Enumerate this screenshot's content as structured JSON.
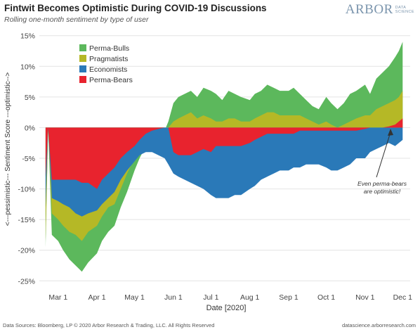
{
  "header": {
    "title": "Fintwit Becomes Optimistic During COVID-19 Discussions",
    "subtitle": "Rolling one-month sentiment by type of user"
  },
  "logo": {
    "word": "ARBOR",
    "sub_line1": "DATA",
    "sub_line2": "SCIENCE"
  },
  "footer": {
    "source": "Data Sources: Bloomberg, LP © 2020 Arbor Research & Trading, LLC. All Rights Reserved",
    "url": "datascience.arborresearch.com"
  },
  "annotation": {
    "line1": "Even perma-bears",
    "line2": "are optimistic!"
  },
  "chart_data": {
    "type": "area",
    "xlabel": "Date [2020]",
    "ylabel": "<---pessimistic--- Sentiment Score ---optimistic-->",
    "xlim": [
      "2020-02-15",
      "2020-12-07"
    ],
    "ylim": [
      -0.26,
      0.16
    ],
    "xticks": [
      {
        "date": "2020-03-01",
        "label": "Mar 1"
      },
      {
        "date": "2020-04-01",
        "label": "Apr 1"
      },
      {
        "date": "2020-05-01",
        "label": "May 1"
      },
      {
        "date": "2020-06-01",
        "label": "Jun 1"
      },
      {
        "date": "2020-07-01",
        "label": "Jul 1"
      },
      {
        "date": "2020-08-01",
        "label": "Aug 1"
      },
      {
        "date": "2020-09-01",
        "label": "Sep 1"
      },
      {
        "date": "2020-10-01",
        "label": "Oct 1"
      },
      {
        "date": "2020-11-01",
        "label": "Nov 1"
      },
      {
        "date": "2020-12-01",
        "label": "Dec 1"
      }
    ],
    "yticks": [
      {
        "value": 0.15,
        "label": "15%"
      },
      {
        "value": 0.1,
        "label": "10%"
      },
      {
        "value": 0.05,
        "label": "5%"
      },
      {
        "value": 0.0,
        "label": "0%"
      },
      {
        "value": -0.05,
        "label": "-5%"
      },
      {
        "value": -0.1,
        "label": "-10%"
      },
      {
        "value": -0.15,
        "label": "-15%"
      },
      {
        "value": -0.2,
        "label": "-20%"
      },
      {
        "value": -0.25,
        "label": "-25%"
      }
    ],
    "grid": "horizontal",
    "legend_position": "top-left",
    "x": [
      "2020-02-20",
      "2020-02-22",
      "2020-02-25",
      "2020-03-01",
      "2020-03-05",
      "2020-03-10",
      "2020-03-15",
      "2020-03-20",
      "2020-03-25",
      "2020-04-01",
      "2020-04-05",
      "2020-04-10",
      "2020-04-15",
      "2020-04-20",
      "2020-04-25",
      "2020-05-01",
      "2020-05-05",
      "2020-05-10",
      "2020-05-15",
      "2020-05-20",
      "2020-05-25",
      "2020-05-28",
      "2020-06-01",
      "2020-06-05",
      "2020-06-10",
      "2020-06-15",
      "2020-06-20",
      "2020-06-25",
      "2020-07-01",
      "2020-07-05",
      "2020-07-10",
      "2020-07-15",
      "2020-07-20",
      "2020-07-25",
      "2020-08-01",
      "2020-08-05",
      "2020-08-10",
      "2020-08-15",
      "2020-08-20",
      "2020-08-25",
      "2020-09-01",
      "2020-09-05",
      "2020-09-10",
      "2020-09-15",
      "2020-09-20",
      "2020-09-25",
      "2020-10-01",
      "2020-10-05",
      "2020-10-10",
      "2020-10-15",
      "2020-10-20",
      "2020-10-25",
      "2020-11-01",
      "2020-11-05",
      "2020-11-10",
      "2020-11-15",
      "2020-11-20",
      "2020-11-25",
      "2020-11-28",
      "2020-12-01"
    ],
    "series": [
      {
        "name": "Perma-Bulls",
        "color": "#5cb85c",
        "values": [
          -0.195,
          0.0,
          -0.175,
          -0.185,
          -0.2,
          -0.215,
          -0.225,
          -0.235,
          -0.22,
          -0.205,
          -0.185,
          -0.17,
          -0.16,
          -0.13,
          -0.105,
          -0.07,
          -0.05,
          -0.03,
          -0.02,
          -0.01,
          -0.005,
          0.01,
          0.04,
          0.05,
          0.055,
          0.06,
          0.05,
          0.065,
          0.06,
          0.055,
          0.045,
          0.06,
          0.055,
          0.05,
          0.045,
          0.055,
          0.06,
          0.07,
          0.065,
          0.06,
          0.06,
          0.065,
          0.055,
          0.045,
          0.035,
          0.03,
          0.05,
          0.04,
          0.03,
          0.04,
          0.055,
          0.06,
          0.07,
          0.055,
          0.08,
          0.09,
          0.1,
          0.115,
          0.125,
          0.14
        ]
      },
      {
        "name": "Pragmatists",
        "color": "#b5b826",
        "values": [
          -0.185,
          0.0,
          -0.14,
          -0.15,
          -0.16,
          -0.17,
          -0.175,
          -0.185,
          -0.17,
          -0.16,
          -0.145,
          -0.13,
          -0.125,
          -0.1,
          -0.075,
          -0.05,
          -0.04,
          -0.03,
          -0.02,
          -0.01,
          -0.005,
          0.0,
          0.01,
          0.015,
          0.02,
          0.025,
          0.015,
          0.02,
          0.015,
          0.01,
          0.01,
          0.015,
          0.015,
          0.01,
          0.01,
          0.015,
          0.02,
          0.025,
          0.025,
          0.02,
          0.02,
          0.02,
          0.02,
          0.015,
          0.01,
          0.005,
          0.01,
          0.005,
          0.0,
          0.005,
          0.01,
          0.015,
          0.02,
          0.02,
          0.03,
          0.035,
          0.04,
          0.045,
          0.05,
          0.06
        ]
      },
      {
        "name": "Economists",
        "color": "#2a79b8",
        "values": [
          -0.13,
          0.0,
          -0.115,
          -0.12,
          -0.125,
          -0.13,
          -0.14,
          -0.145,
          -0.14,
          -0.135,
          -0.125,
          -0.115,
          -0.105,
          -0.085,
          -0.07,
          -0.055,
          -0.045,
          -0.04,
          -0.04,
          -0.045,
          -0.05,
          -0.06,
          -0.075,
          -0.08,
          -0.085,
          -0.09,
          -0.095,
          -0.1,
          -0.11,
          -0.115,
          -0.115,
          -0.115,
          -0.11,
          -0.11,
          -0.1,
          -0.095,
          -0.085,
          -0.08,
          -0.075,
          -0.07,
          -0.07,
          -0.065,
          -0.065,
          -0.06,
          -0.06,
          -0.06,
          -0.065,
          -0.07,
          -0.07,
          -0.065,
          -0.06,
          -0.05,
          -0.05,
          -0.04,
          -0.035,
          -0.03,
          -0.025,
          -0.03,
          -0.025,
          -0.02
        ]
      },
      {
        "name": "Perma-Bears",
        "color": "#e8232e",
        "values": [
          -0.08,
          0.0,
          -0.085,
          -0.085,
          -0.085,
          -0.085,
          -0.085,
          -0.09,
          -0.09,
          -0.1,
          -0.085,
          -0.075,
          -0.065,
          -0.05,
          -0.04,
          -0.03,
          -0.02,
          -0.01,
          -0.005,
          -0.002,
          0.0,
          0.0,
          -0.04,
          -0.045,
          -0.045,
          -0.045,
          -0.04,
          -0.035,
          -0.04,
          -0.03,
          -0.03,
          -0.03,
          -0.03,
          -0.03,
          -0.025,
          -0.02,
          -0.015,
          -0.01,
          -0.01,
          -0.01,
          -0.01,
          -0.01,
          -0.005,
          -0.005,
          -0.005,
          -0.005,
          -0.005,
          -0.005,
          -0.005,
          -0.005,
          -0.005,
          -0.005,
          -0.002,
          0.0,
          0.0,
          0.0,
          0.002,
          0.005,
          0.01,
          0.015
        ]
      }
    ]
  }
}
